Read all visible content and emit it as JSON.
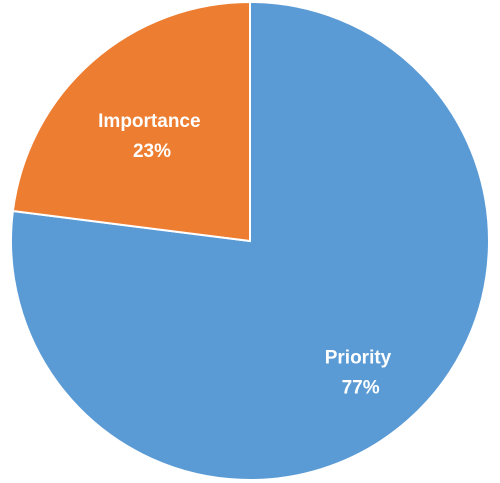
{
  "chart_data": {
    "type": "pie",
    "title": "",
    "slices": [
      {
        "name": "Priority",
        "value": 77,
        "label": "77%",
        "color": "#5B9BD5"
      },
      {
        "name": "Importance",
        "value": 23,
        "label": "23%",
        "color": "#ED7D31"
      }
    ],
    "start_angle": "12 o'clock",
    "direction": "clockwise",
    "legend": "none"
  }
}
